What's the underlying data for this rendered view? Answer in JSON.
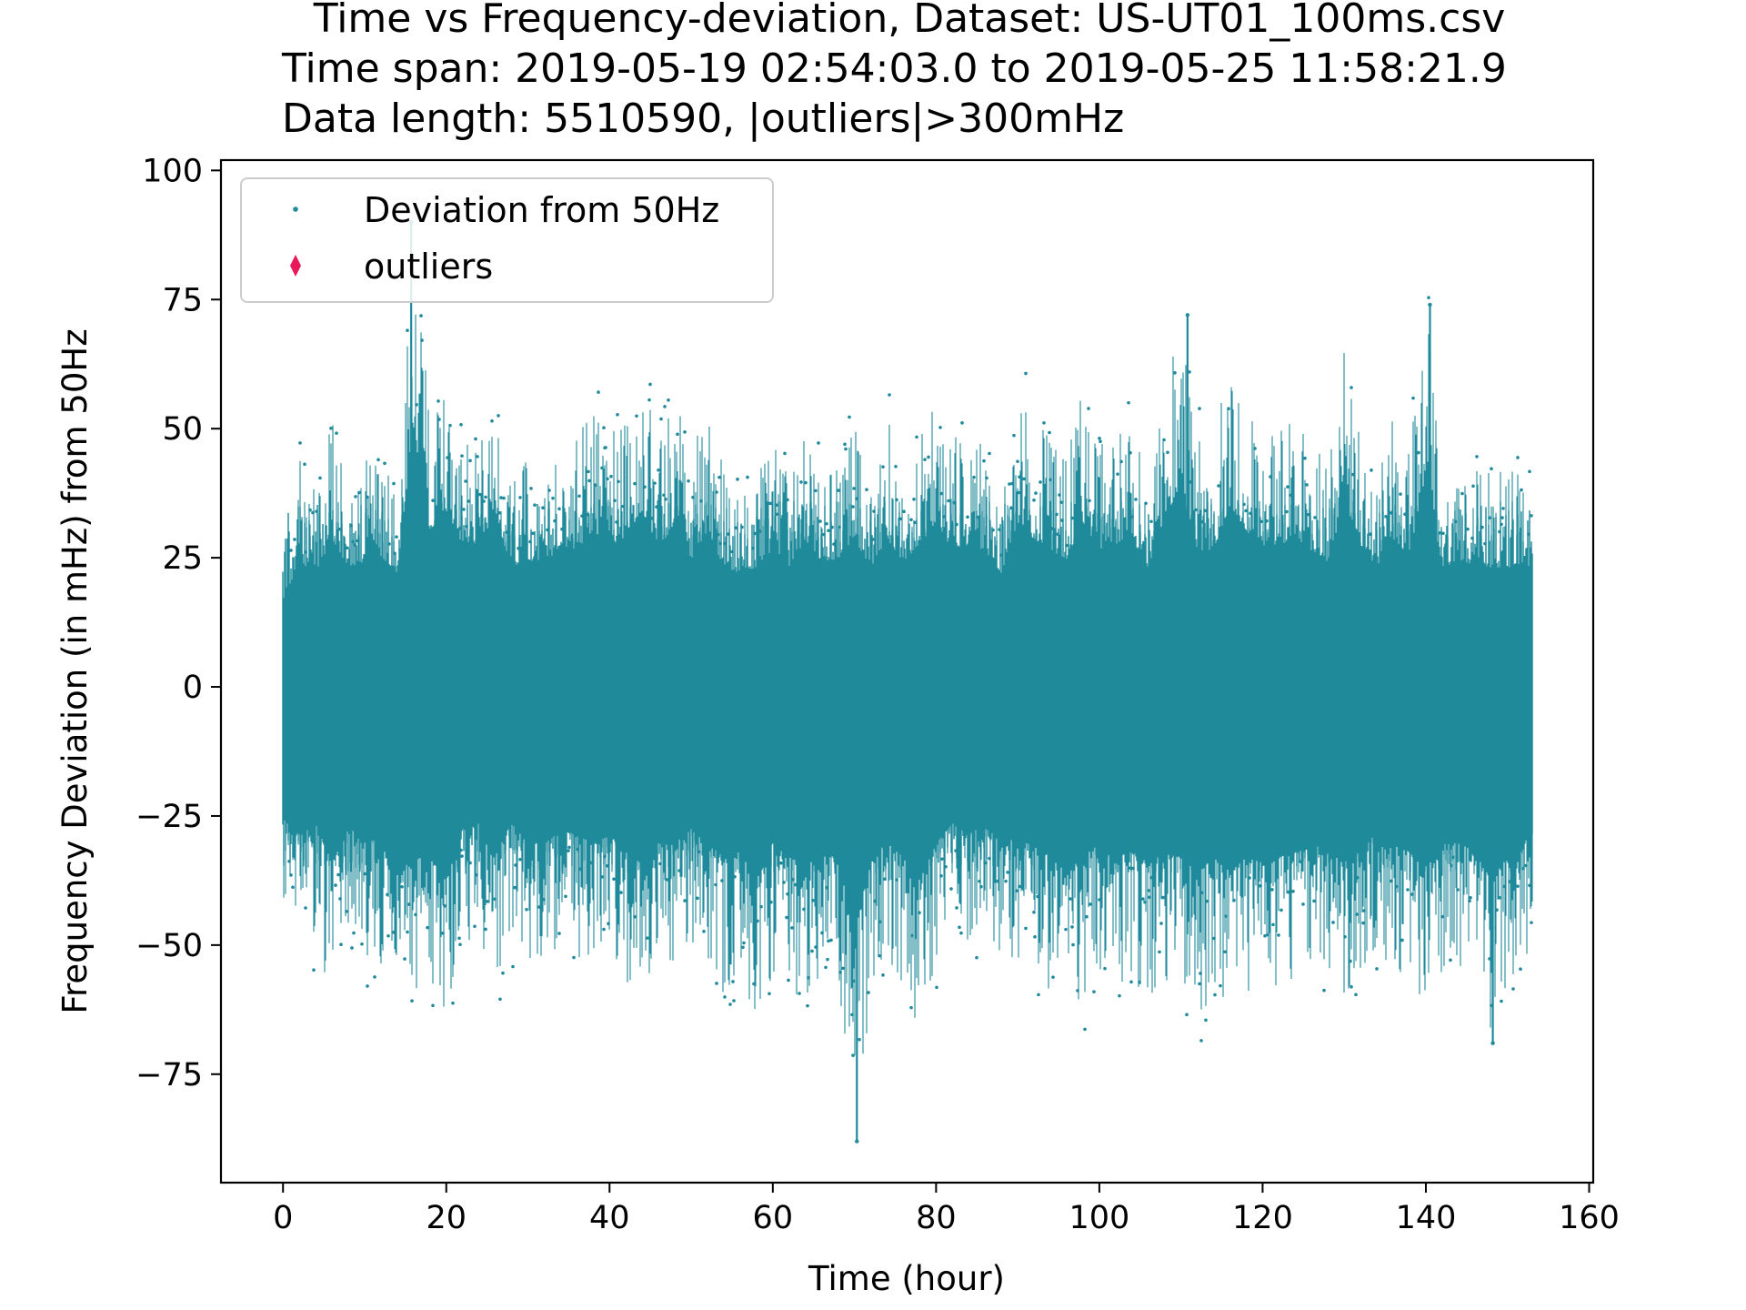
{
  "chart_data": {
    "type": "scatter",
    "title_lines": [
      "Time vs Frequency-deviation, Dataset: US-UT01_100ms.csv",
      "Time span: 2019-05-19 02:54:03.0 to 2019-05-25 11:58:21.9",
      "Data length: 5510590, |outliers|>300mHz"
    ],
    "xlabel": "Time (hour)",
    "ylabel": "Frequency Deviation (in mHz) from 50Hz",
    "xlim": [
      -7.6,
      160.5
    ],
    "ylim": [
      -96,
      102
    ],
    "xticks": [
      0,
      20,
      40,
      60,
      80,
      100,
      120,
      140,
      160
    ],
    "xtick_labels": [
      "0",
      "20",
      "40",
      "60",
      "80",
      "100",
      "120",
      "140",
      "160"
    ],
    "yticks": [
      100,
      75,
      50,
      25,
      0,
      -25,
      -50,
      -75
    ],
    "ytick_labels": [
      "100",
      "75",
      "50",
      "25",
      "0",
      "−25",
      "−50",
      "−75"
    ],
    "grid": false,
    "legend_position": "upper left",
    "series": [
      {
        "name": "Deviation from 50Hz",
        "marker": "dot",
        "color": "#1f8a9b",
        "x_range": [
          0,
          153.07
        ],
        "envelope": {
          "x": [
            0,
            2,
            4,
            6,
            8,
            10,
            12,
            14,
            16,
            18,
            20,
            22,
            24,
            26,
            28,
            30,
            32,
            34,
            36,
            38,
            40,
            42,
            44,
            46,
            48,
            50,
            52,
            54,
            56,
            58,
            60,
            62,
            64,
            66,
            68,
            70,
            72,
            74,
            76,
            78,
            80,
            82,
            84,
            86,
            88,
            90,
            92,
            94,
            96,
            98,
            100,
            102,
            104,
            106,
            108,
            110,
            112,
            114,
            116,
            118,
            120,
            122,
            124,
            126,
            128,
            130,
            132,
            134,
            136,
            138,
            140,
            142,
            144,
            146,
            148,
            150,
            152,
            153
          ],
          "upper": [
            30,
            44,
            40,
            52,
            42,
            44,
            46,
            40,
            90,
            55,
            62,
            50,
            50,
            60,
            42,
            45,
            42,
            50,
            48,
            55,
            50,
            52,
            62,
            48,
            58,
            45,
            55,
            42,
            40,
            42,
            48,
            42,
            50,
            44,
            45,
            52,
            42,
            52,
            44,
            50,
            58,
            48,
            50,
            48,
            40,
            58,
            52,
            48,
            45,
            58,
            48,
            50,
            52,
            42,
            60,
            70,
            48,
            48,
            64,
            55,
            48,
            50,
            52,
            48,
            44,
            65,
            50,
            42,
            52,
            46,
            75,
            42,
            44,
            42,
            42,
            42,
            42,
            40
          ],
          "lower": [
            -45,
            -52,
            -48,
            -62,
            -50,
            -52,
            -55,
            -66,
            -60,
            -60,
            -68,
            -50,
            -48,
            -58,
            -48,
            -55,
            -55,
            -50,
            -52,
            -55,
            -52,
            -58,
            -62,
            -55,
            -55,
            -50,
            -55,
            -60,
            -58,
            -68,
            -55,
            -60,
            -62,
            -60,
            -58,
            -88,
            -60,
            -55,
            -60,
            -68,
            -55,
            -48,
            -50,
            -50,
            -52,
            -55,
            -55,
            -60,
            -65,
            -60,
            -55,
            -60,
            -58,
            -62,
            -58,
            -60,
            -65,
            -60,
            -65,
            -60,
            -62,
            -60,
            -58,
            -55,
            -58,
            -60,
            -55,
            -52,
            -55,
            -58,
            -62,
            -55,
            -55,
            -58,
            -68,
            -60,
            -55,
            -50
          ]
        },
        "annotated_extremes": [
          {
            "x": 15.7,
            "y": 90
          },
          {
            "x": 70.3,
            "y": -88
          },
          {
            "x": 110.8,
            "y": 72
          },
          {
            "x": 140.5,
            "y": 74
          },
          {
            "x": 148.2,
            "y": -69
          }
        ]
      },
      {
        "name": "outliers",
        "marker": "thin_diamond",
        "color": "#e8185a",
        "points": []
      }
    ]
  }
}
